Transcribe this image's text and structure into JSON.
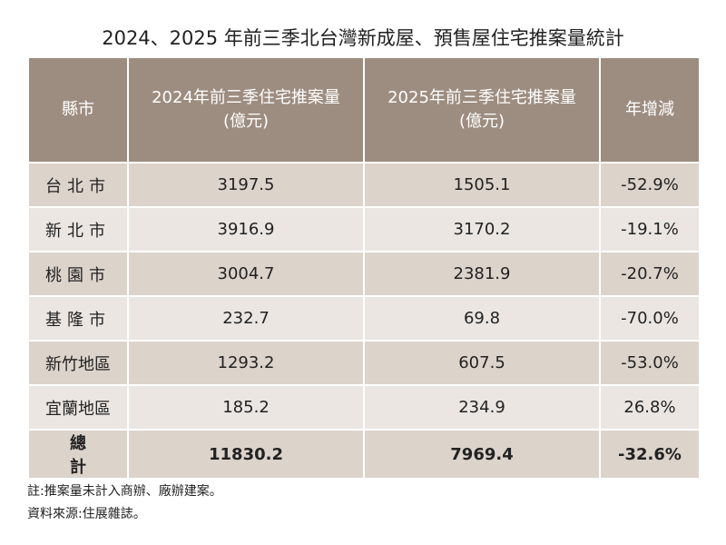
{
  "title": "2024、2025 年前三季北台灣新成屋、預售屋住宅推案量統計",
  "table": {
    "headers": [
      [
        "縣市"
      ],
      [
        "2024年前三季住宅推案量",
        "(億元)"
      ],
      [
        "2025年前三季住宅推案量",
        "(億元)"
      ],
      [
        "年增減"
      ]
    ],
    "rows": [
      [
        "台北市",
        "3197.5",
        "1505.1",
        "-52.9%"
      ],
      [
        "新北市",
        "3916.9",
        "3170.2",
        "-19.1%"
      ],
      [
        "桃園市",
        "3004.7",
        "2381.9",
        "-20.7%"
      ],
      [
        "基隆市",
        "232.7",
        "69.8",
        "-70.0%"
      ],
      [
        "新竹地區",
        "1293.2",
        "607.5",
        "-53.0%"
      ],
      [
        "宜蘭地區",
        "185.2",
        "234.9",
        "26.8%"
      ]
    ],
    "total": [
      "總計",
      "11830.2",
      "7969.4",
      "-32.6%"
    ]
  },
  "notes": [
    "註:推案量未計入商辦、廠辦建案。",
    "資料來源:住展雜誌。"
  ]
}
